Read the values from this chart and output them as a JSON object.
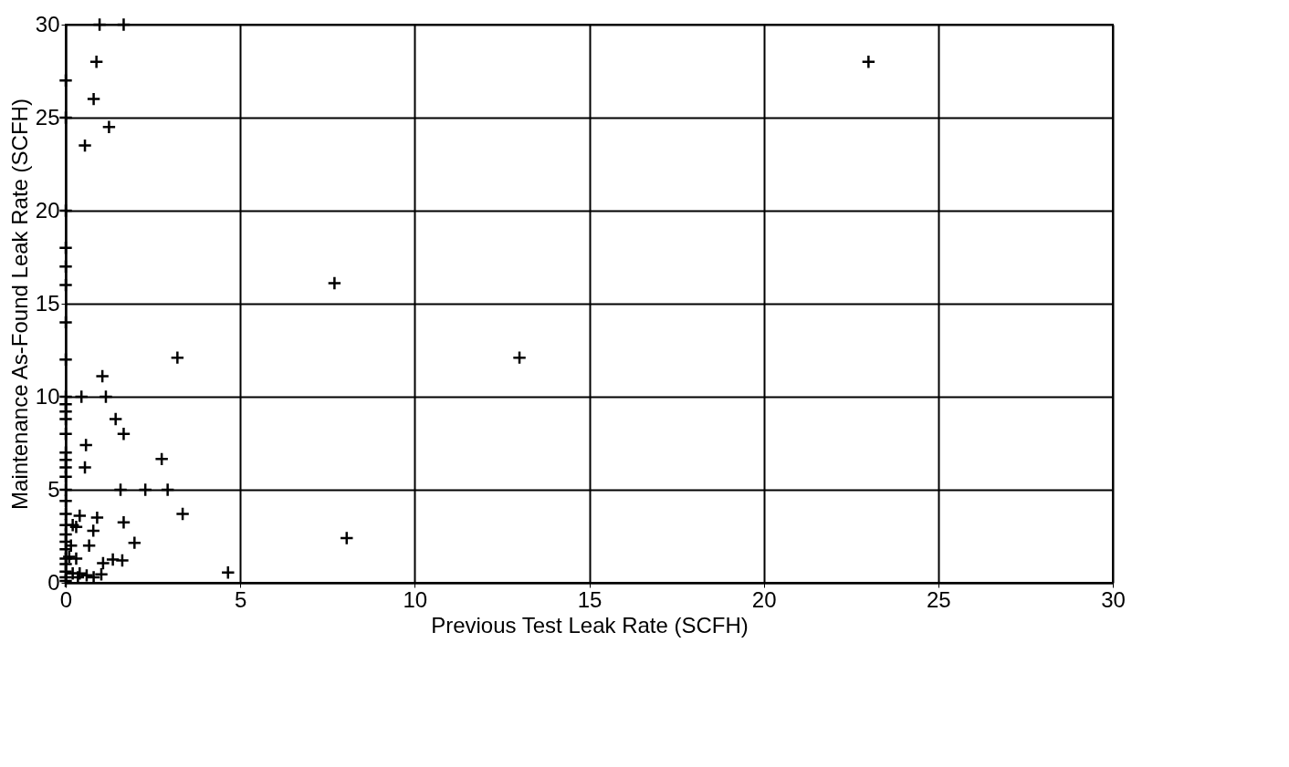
{
  "chart_data": {
    "type": "scatter",
    "xlabel": "Previous Test Leak Rate (SCFH)",
    "ylabel": "Maintenance As-Found Leak Rate (SCFH)",
    "xlim": [
      0,
      30
    ],
    "ylim": [
      0,
      30
    ],
    "xticks": [
      0,
      5,
      10,
      15,
      20,
      25,
      30
    ],
    "yticks": [
      0,
      5,
      10,
      15,
      20,
      25,
      30
    ],
    "grid": true,
    "marker": "cross",
    "series": [
      {
        "color": "#000000",
        "x": [
          0,
          0,
          0,
          0,
          0,
          0,
          0,
          0,
          0,
          0,
          0,
          0,
          0,
          0,
          0,
          0,
          0,
          0,
          0,
          0,
          0,
          0,
          0,
          0,
          0,
          0,
          0,
          0,
          0,
          0.97,
          1.66,
          0.88,
          0.8,
          1.24,
          0.55,
          7.7,
          3.2,
          13,
          1.05,
          0.45,
          1.15,
          23,
          1.43,
          1.66,
          0.58,
          2.75,
          0.55,
          1.57,
          2.28,
          2.92,
          3.35,
          0.9,
          0.4,
          1.66,
          0.79,
          1.97,
          0.67,
          1.62,
          1.07,
          1.35,
          1.02,
          8.05,
          4.65,
          0.2,
          0.3,
          0.1,
          0.3,
          0.2,
          0.4,
          0.6,
          0.15,
          0.35,
          0.8
        ],
        "values": [
          27,
          25,
          20,
          18,
          17,
          16,
          14,
          12,
          10,
          9.6,
          9.2,
          8.8,
          8,
          7,
          6.6,
          6.2,
          5.7,
          5,
          4.4,
          3.7,
          3.1,
          2.6,
          2.2,
          1.8,
          1.3,
          1,
          0.6,
          0.3,
          0.1,
          30,
          30,
          28,
          26,
          24.5,
          23.5,
          16.1,
          12.1,
          12.1,
          11.1,
          10,
          10,
          28,
          8.8,
          8,
          7.4,
          6.65,
          6.2,
          5,
          5,
          5,
          3.7,
          3.5,
          3.6,
          3.25,
          2.8,
          2.15,
          2,
          1.2,
          1.05,
          1.25,
          0.45,
          2.4,
          0.55,
          3.1,
          3,
          1.4,
          1.3,
          0.5,
          0.5,
          0.4,
          2,
          0.3,
          0.3
        ]
      }
    ]
  }
}
